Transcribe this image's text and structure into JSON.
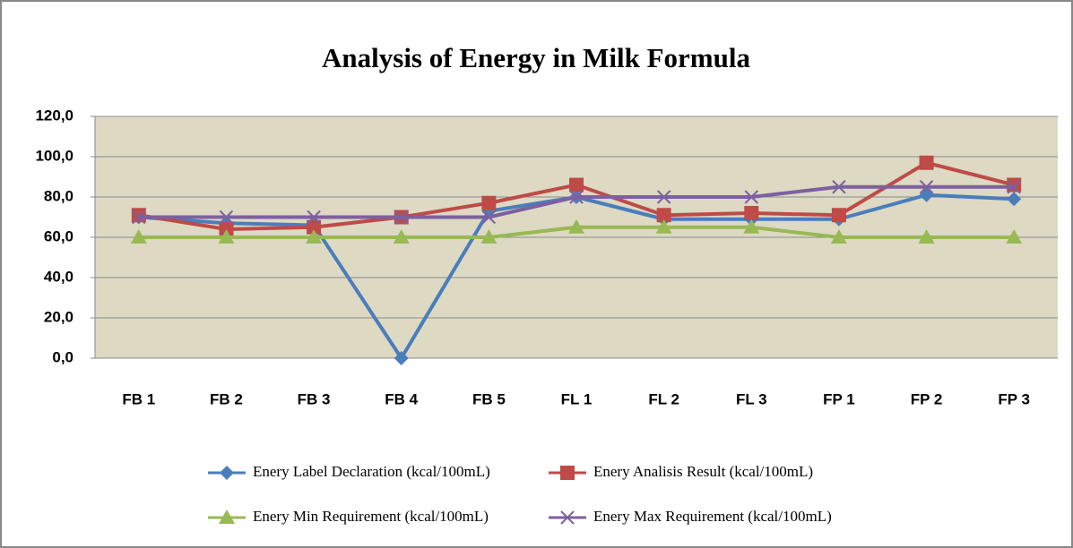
{
  "chart_data": {
    "type": "line",
    "title": "Analysis of Energy in Milk Formula",
    "categories": [
      "FB 1",
      "FB 2",
      "FB 3",
      "FB 4",
      "FB 5",
      "FL 1",
      "FL 2",
      "FL 3",
      "FP 1",
      "FP 2",
      "FP 3"
    ],
    "series": [
      {
        "name": "Enery Label Declaration (kcal/100mL)",
        "color": "#4a7ebb",
        "marker": "diamond",
        "values": [
          70,
          67,
          66,
          0,
          73,
          80,
          69,
          69,
          69,
          81,
          79
        ]
      },
      {
        "name": "Enery Analisis Result (kcal/100mL)",
        "color": "#be4b48",
        "marker": "square",
        "values": [
          71,
          64,
          65,
          70,
          77,
          86,
          71,
          72,
          71,
          97,
          86
        ]
      },
      {
        "name": "Enery Min Requirement (kcal/100mL)",
        "color": "#98b954",
        "marker": "triangle",
        "values": [
          60,
          60,
          60,
          60,
          60,
          65,
          65,
          65,
          60,
          60,
          60
        ]
      },
      {
        "name": "Enery Max Requirement (kcal/100mL)",
        "color": "#7d60a0",
        "marker": "x",
        "values": [
          70,
          70,
          70,
          70,
          70,
          80,
          80,
          80,
          85,
          85,
          85
        ]
      }
    ],
    "ylim": [
      0,
      120
    ],
    "yticks": [
      {
        "value": 0,
        "label": "0,0"
      },
      {
        "value": 20,
        "label": "20,0"
      },
      {
        "value": 40,
        "label": "40,0"
      },
      {
        "value": 60,
        "label": "60,0"
      },
      {
        "value": 80,
        "label": "80,0"
      },
      {
        "value": 100,
        "label": "100,0"
      },
      {
        "value": 120,
        "label": "120,0"
      }
    ],
    "grid": true,
    "legend": "bottom",
    "plot_background": "#ddd9c3"
  }
}
